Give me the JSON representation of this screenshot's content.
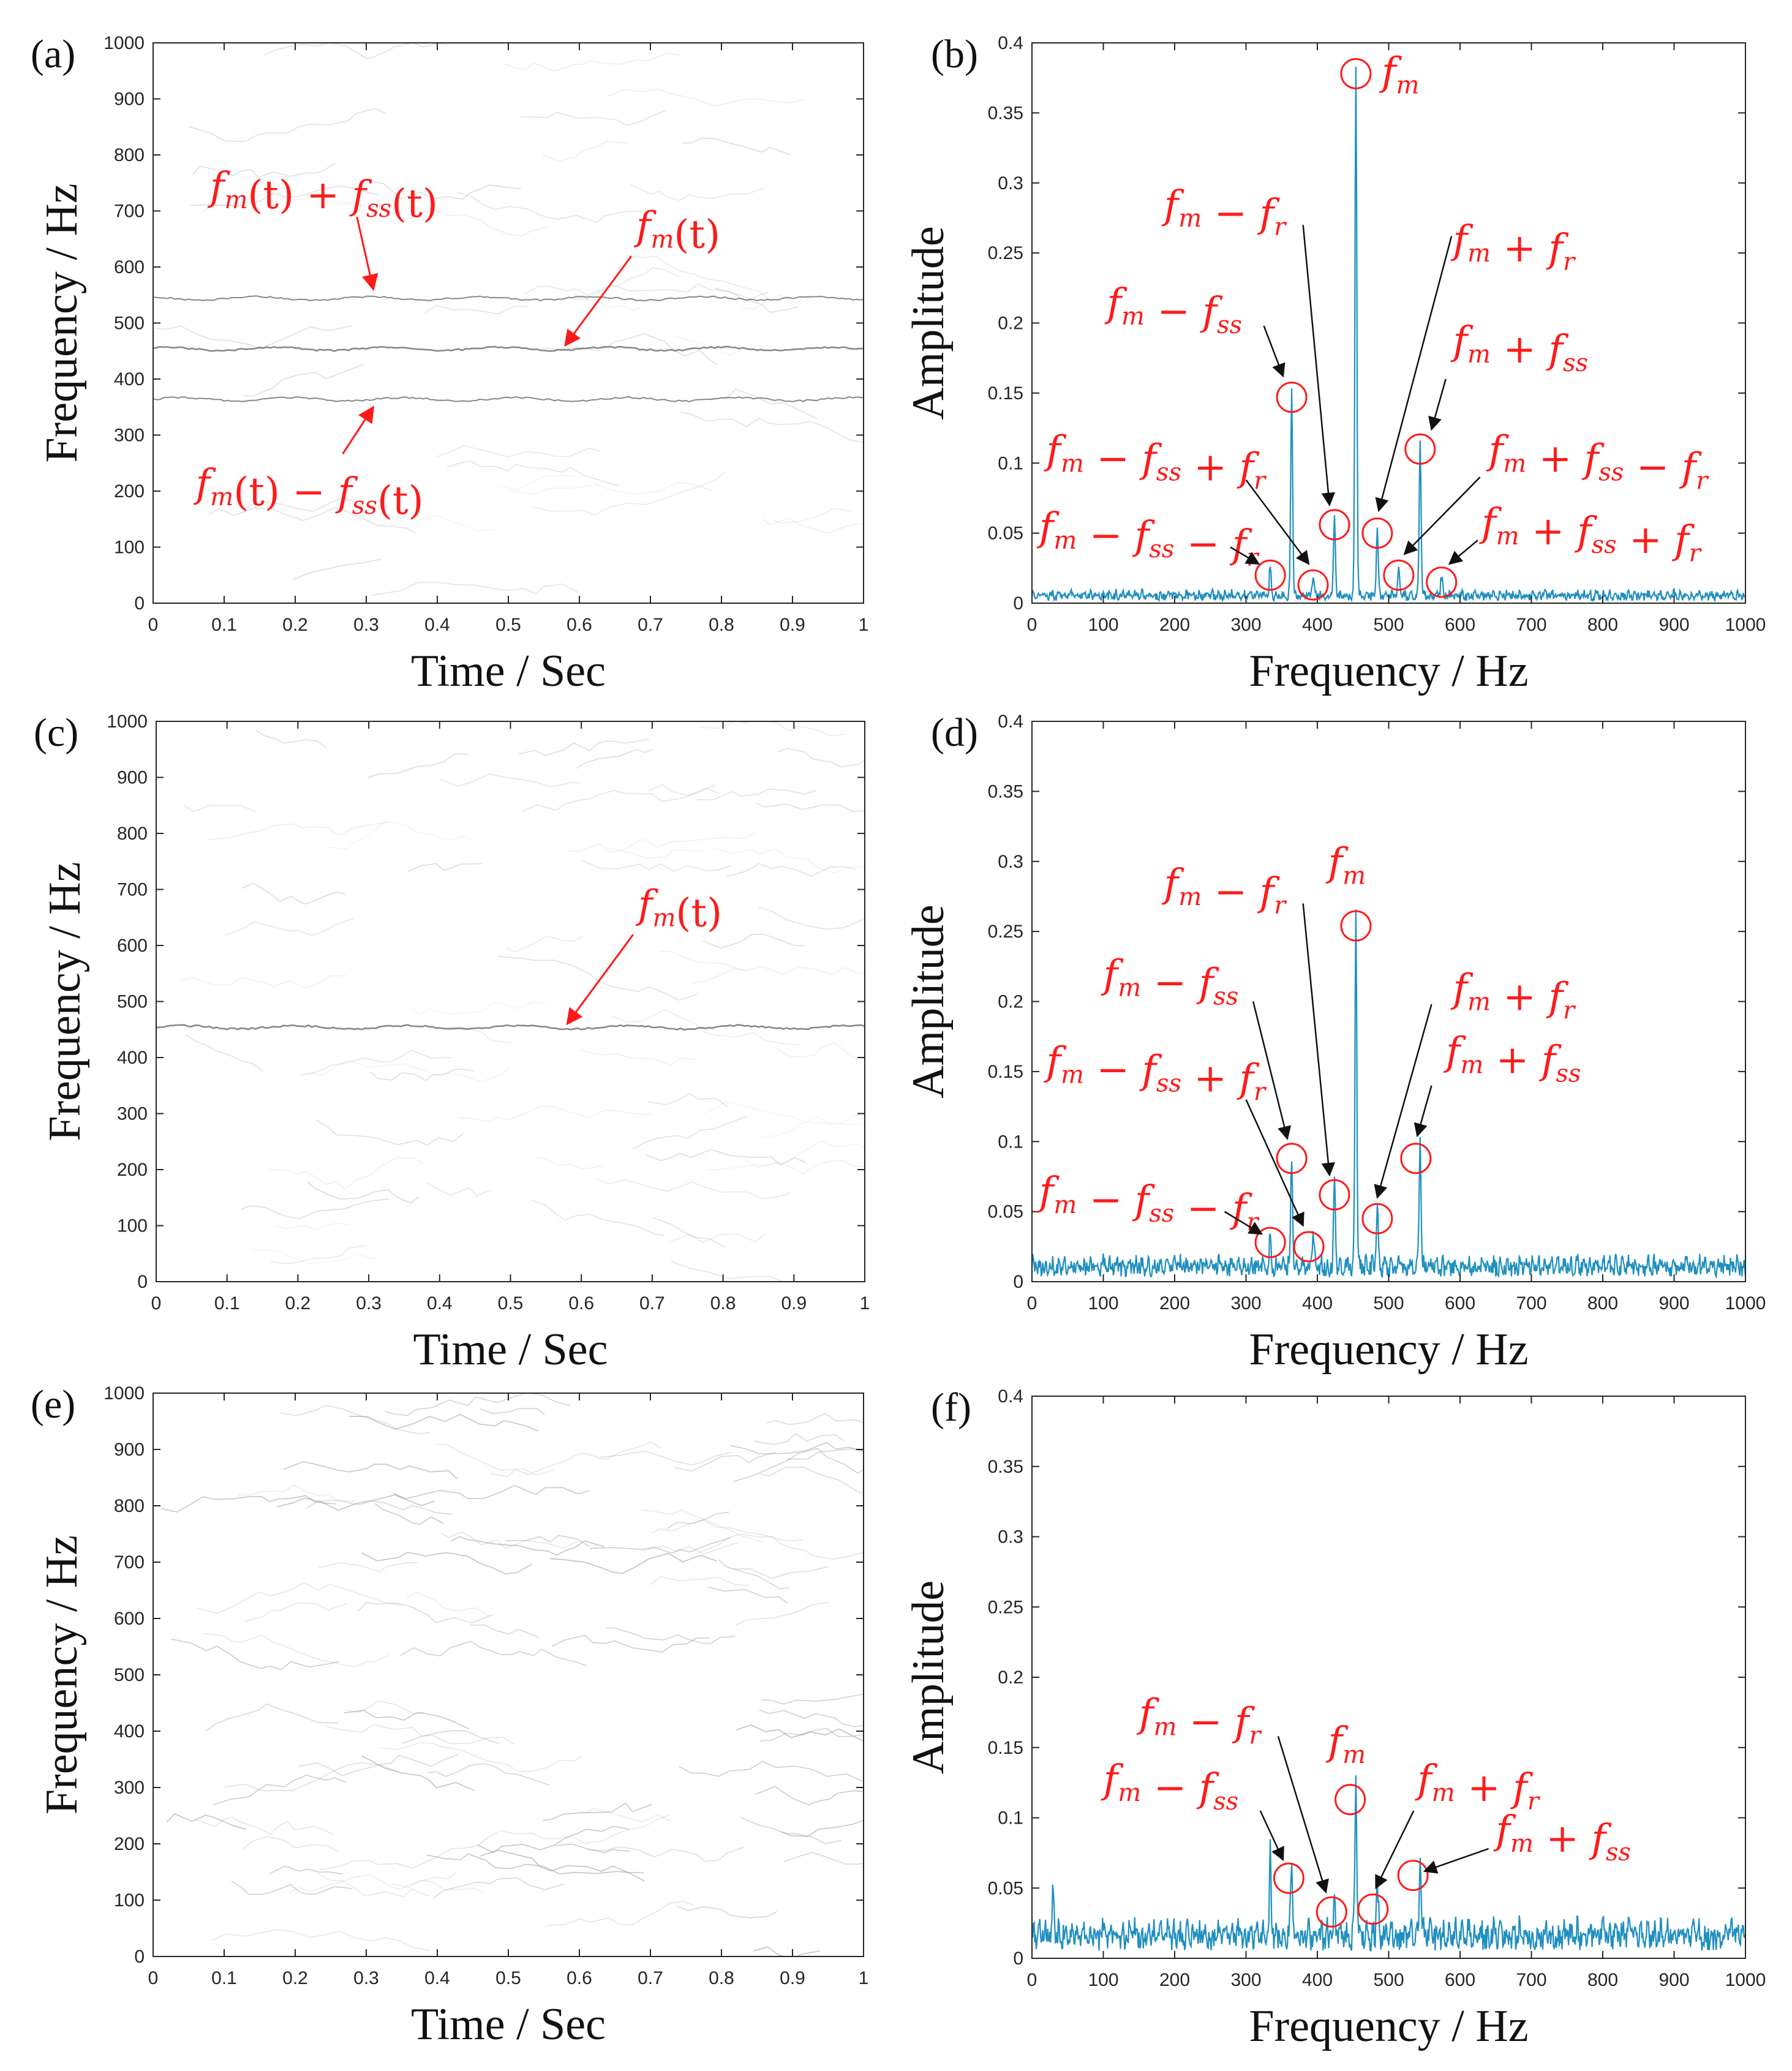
{
  "colors": {
    "spectrum": "#1f8fbf",
    "annotation": "#ff1a1a",
    "axis": "#262626",
    "tf_ridge": "#9a9a9a"
  },
  "chart_data": [
    {
      "id": "a",
      "panel_label": "(a)",
      "type": "heatmap",
      "xlabel": "Time / Sec",
      "ylabel": "Frequency / Hz",
      "xlim": [
        0,
        1
      ],
      "ylim": [
        0,
        1000
      ],
      "xticks": [
        "0",
        "0.1",
        "0.2",
        "0.3",
        "0.4",
        "0.5",
        "0.6",
        "0.7",
        "0.8",
        "0.9",
        "1"
      ],
      "yticks": [
        "0",
        "100",
        "200",
        "300",
        "400",
        "500",
        "600",
        "700",
        "800",
        "900",
        "1000"
      ],
      "ridges_hz": [
        364,
        454,
        544
      ],
      "annotations": [
        {
          "parts": [
            [
              "f",
              "m"
            ],
            [
              "(t) + "
            ],
            [
              "f",
              "ss"
            ],
            [
              "(t)"
            ]
          ],
          "text_x": 0.08,
          "text_y": 720,
          "arrow_to": [
            0.31,
            560
          ]
        },
        {
          "parts": [
            [
              "f",
              "m"
            ],
            [
              "(t)"
            ]
          ],
          "text_x": 0.68,
          "text_y": 650,
          "arrow_to": [
            0.58,
            460
          ]
        },
        {
          "parts": [
            [
              "f",
              "m"
            ],
            [
              "(t) − "
            ],
            [
              "f",
              "ss"
            ],
            [
              "(t)"
            ]
          ],
          "text_x": 0.06,
          "text_y": 190,
          "arrow_to": [
            0.31,
            350
          ]
        }
      ]
    },
    {
      "id": "b",
      "panel_label": "(b)",
      "type": "line",
      "xlabel": "Frequency / Hz",
      "ylabel": "Amplitude",
      "xlim": [
        0,
        1000
      ],
      "ylim": [
        0,
        0.4
      ],
      "xticks": [
        "0",
        "100",
        "200",
        "300",
        "400",
        "500",
        "600",
        "700",
        "800",
        "900",
        "1000"
      ],
      "yticks": [
        "0",
        "0.05",
        "0.1",
        "0.15",
        "0.2",
        "0.25",
        "0.3",
        "0.35",
        "0.4"
      ],
      "noise_level": 0.006,
      "peaks": [
        {
          "hz": 334,
          "amp": 0.02
        },
        {
          "hz": 364,
          "amp": 0.147
        },
        {
          "hz": 394,
          "amp": 0.013
        },
        {
          "hz": 424,
          "amp": 0.056
        },
        {
          "hz": 454,
          "amp": 0.378
        },
        {
          "hz": 484,
          "amp": 0.05
        },
        {
          "hz": 514,
          "amp": 0.02
        },
        {
          "hz": 544,
          "amp": 0.11
        },
        {
          "hz": 574,
          "amp": 0.015
        }
      ],
      "annotations": [
        {
          "parts": [
            [
              "f",
              "m"
            ]
          ],
          "text_x": 490,
          "text_y": 0.37,
          "circle": [
            454,
            0.378
          ]
        },
        {
          "parts": [
            [
              "f",
              "m"
            ],
            [
              " − "
            ],
            [
              "f",
              "r"
            ]
          ],
          "text_x": 185,
          "text_y": 0.275,
          "circle": [
            424,
            0.056
          ],
          "arrow_from": [
            380,
            0.27
          ],
          "arrow_to": [
            417,
            0.07
          ]
        },
        {
          "parts": [
            [
              "f",
              "m"
            ],
            [
              " + "
            ],
            [
              "f",
              "r"
            ]
          ],
          "text_x": 590,
          "text_y": 0.25,
          "circle": [
            484,
            0.05
          ],
          "arrow_from": [
            588,
            0.262
          ],
          "arrow_to": [
            486,
            0.066
          ]
        },
        {
          "parts": [
            [
              "f",
              "m"
            ],
            [
              " − "
            ],
            [
              "f",
              "ss"
            ]
          ],
          "text_x": 105,
          "text_y": 0.205,
          "circle": [
            364,
            0.147
          ],
          "arrow_from": [
            325,
            0.198
          ],
          "arrow_to": [
            352,
            0.162
          ]
        },
        {
          "parts": [
            [
              "f",
              "m"
            ],
            [
              " + "
            ],
            [
              "f",
              "ss"
            ]
          ],
          "text_x": 590,
          "text_y": 0.178,
          "circle": [
            544,
            0.11
          ],
          "arrow_from": [
            580,
            0.16
          ],
          "arrow_to": [
            560,
            0.124
          ]
        },
        {
          "parts": [
            [
              "f",
              "m"
            ],
            [
              " − "
            ],
            [
              "f",
              "ss"
            ],
            [
              " + "
            ],
            [
              "f",
              "r"
            ]
          ],
          "text_x": 20,
          "text_y": 0.1,
          "circle": [
            394,
            0.013
          ],
          "arrow_from": [
            300,
            0.088
          ],
          "arrow_to": [
            388,
            0.028
          ]
        },
        {
          "parts": [
            [
              "f",
              "m"
            ],
            [
              " + "
            ],
            [
              "f",
              "ss"
            ],
            [
              " − "
            ],
            [
              "f",
              "r"
            ]
          ],
          "text_x": 640,
          "text_y": 0.1,
          "circle": [
            514,
            0.02
          ],
          "arrow_from": [
            628,
            0.09
          ],
          "arrow_to": [
            522,
            0.035
          ]
        },
        {
          "parts": [
            [
              "f",
              "m"
            ],
            [
              " − "
            ],
            [
              "f",
              "ss"
            ],
            [
              " − "
            ],
            [
              "f",
              "r"
            ]
          ],
          "text_x": 10,
          "text_y": 0.045,
          "circle": [
            334,
            0.02
          ],
          "arrow_from": [
            278,
            0.04
          ],
          "arrow_to": [
            318,
            0.028
          ]
        },
        {
          "parts": [
            [
              "f",
              "m"
            ],
            [
              " + "
            ],
            [
              "f",
              "ss"
            ],
            [
              " + "
            ],
            [
              "f",
              "r"
            ]
          ],
          "text_x": 630,
          "text_y": 0.048,
          "circle": [
            574,
            0.015
          ],
          "arrow_from": [
            625,
            0.045
          ],
          "arrow_to": [
            585,
            0.028
          ]
        }
      ]
    },
    {
      "id": "c",
      "panel_label": "(c)",
      "type": "heatmap",
      "xlabel": "Time / Sec",
      "ylabel": "Frequency / Hz",
      "xlim": [
        0,
        1
      ],
      "ylim": [
        0,
        1000
      ],
      "xticks": [
        "0",
        "0.1",
        "0.2",
        "0.3",
        "0.4",
        "0.5",
        "0.6",
        "0.7",
        "0.8",
        "0.9",
        "1"
      ],
      "yticks": [
        "0",
        "100",
        "200",
        "300",
        "400",
        "500",
        "600",
        "700",
        "800",
        "900",
        "1000"
      ],
      "ridges_hz": [
        454
      ],
      "annotations": [
        {
          "parts": [
            [
              "f",
              "m"
            ],
            [
              "(t)"
            ]
          ],
          "text_x": 0.68,
          "text_y": 650,
          "arrow_to": [
            0.58,
            460
          ]
        }
      ]
    },
    {
      "id": "d",
      "panel_label": "(d)",
      "type": "line",
      "xlabel": "Frequency / Hz",
      "ylabel": "Amplitude",
      "xlim": [
        0,
        1000
      ],
      "ylim": [
        0,
        0.4
      ],
      "xticks": [
        "0",
        "100",
        "200",
        "300",
        "400",
        "500",
        "600",
        "700",
        "800",
        "900",
        "1000"
      ],
      "yticks": [
        "0",
        "0.05",
        "0.1",
        "0.15",
        "0.2",
        "0.25",
        "0.3",
        "0.35",
        "0.4"
      ],
      "noise_level": 0.012,
      "peaks": [
        {
          "hz": 334,
          "amp": 0.024
        },
        {
          "hz": 364,
          "amp": 0.082
        },
        {
          "hz": 394,
          "amp": 0.022
        },
        {
          "hz": 424,
          "amp": 0.062
        },
        {
          "hz": 454,
          "amp": 0.254
        },
        {
          "hz": 484,
          "amp": 0.045
        },
        {
          "hz": 544,
          "amp": 0.09
        }
      ],
      "annotations": [
        {
          "parts": [
            [
              "f",
              "m"
            ]
          ],
          "text_x": 415,
          "text_y": 0.29,
          "circle": [
            454,
            0.254
          ]
        },
        {
          "parts": [
            [
              "f",
              "m"
            ],
            [
              " − "
            ],
            [
              "f",
              "r"
            ]
          ],
          "text_x": 185,
          "text_y": 0.275,
          "circle": [
            424,
            0.062
          ],
          "arrow_from": [
            380,
            0.27
          ],
          "arrow_to": [
            417,
            0.076
          ]
        },
        {
          "parts": [
            [
              "f",
              "m"
            ],
            [
              " − "
            ],
            [
              "f",
              "ss"
            ]
          ],
          "text_x": 100,
          "text_y": 0.21,
          "circle": [
            364,
            0.088
          ],
          "arrow_from": [
            310,
            0.2
          ],
          "arrow_to": [
            358,
            0.102
          ]
        },
        {
          "parts": [
            [
              "f",
              "m"
            ],
            [
              " + "
            ],
            [
              "f",
              "r"
            ]
          ],
          "text_x": 590,
          "text_y": 0.2,
          "circle": [
            484,
            0.045
          ],
          "arrow_from": [
            560,
            0.198
          ],
          "arrow_to": [
            484,
            0.06
          ]
        },
        {
          "parts": [
            [
              "f",
              "m"
            ],
            [
              " + "
            ],
            [
              "f",
              "ss"
            ]
          ],
          "text_x": 580,
          "text_y": 0.155,
          "circle": [
            538,
            0.088
          ],
          "arrow_from": [
            560,
            0.14
          ],
          "arrow_to": [
            540,
            0.104
          ]
        },
        {
          "parts": [
            [
              "f",
              "m"
            ],
            [
              " − "
            ],
            [
              "f",
              "ss"
            ],
            [
              " + "
            ],
            [
              "f",
              "r"
            ]
          ],
          "text_x": 20,
          "text_y": 0.148,
          "circle": [
            388,
            0.025
          ],
          "arrow_from": [
            300,
            0.13
          ],
          "arrow_to": [
            380,
            0.04
          ]
        },
        {
          "parts": [
            [
              "f",
              "m"
            ],
            [
              " − "
            ],
            [
              "f",
              "ss"
            ],
            [
              " − "
            ],
            [
              "f",
              "r"
            ]
          ],
          "text_x": 10,
          "text_y": 0.055,
          "circle": [
            334,
            0.028
          ],
          "arrow_from": [
            270,
            0.05
          ],
          "arrow_to": [
            322,
            0.034
          ]
        }
      ]
    },
    {
      "id": "e",
      "panel_label": "(e)",
      "type": "heatmap",
      "xlabel": "Time / Sec",
      "ylabel": "Frequency / Hz",
      "xlim": [
        0,
        1
      ],
      "ylim": [
        0,
        1000
      ],
      "xticks": [
        "0",
        "0.1",
        "0.2",
        "0.3",
        "0.4",
        "0.5",
        "0.6",
        "0.7",
        "0.8",
        "0.9",
        "1"
      ],
      "yticks": [
        "0",
        "100",
        "200",
        "300",
        "400",
        "500",
        "600",
        "700",
        "800",
        "900",
        "1000"
      ],
      "ridges_hz": [],
      "annotations": []
    },
    {
      "id": "f",
      "panel_label": "(f)",
      "type": "line",
      "xlabel": "Frequency / Hz",
      "ylabel": "Amplitude",
      "xlim": [
        0,
        1000
      ],
      "ylim": [
        0,
        0.4
      ],
      "xticks": [
        "0",
        "100",
        "200",
        "300",
        "400",
        "500",
        "600",
        "700",
        "800",
        "900",
        "1000"
      ],
      "yticks": [
        "0",
        "0.05",
        "0.1",
        "0.15",
        "0.2",
        "0.25",
        "0.3",
        "0.35",
        "0.4"
      ],
      "noise_level": 0.018,
      "peaks": [
        {
          "hz": 334,
          "amp": 0.056
        },
        {
          "hz": 364,
          "amp": 0.058
        },
        {
          "hz": 424,
          "amp": 0.03
        },
        {
          "hz": 454,
          "amp": 0.11
        },
        {
          "hz": 484,
          "amp": 0.034
        },
        {
          "hz": 544,
          "amp": 0.05
        },
        {
          "hz": 30,
          "amp": 0.04
        }
      ],
      "annotations": [
        {
          "parts": [
            [
              "f",
              "m"
            ]
          ],
          "text_x": 415,
          "text_y": 0.145,
          "circle": [
            446,
            0.113
          ]
        },
        {
          "parts": [
            [
              "f",
              "m"
            ],
            [
              " − "
            ],
            [
              "f",
              "r"
            ]
          ],
          "text_x": 150,
          "text_y": 0.165,
          "circle": [
            420,
            0.033
          ],
          "arrow_from": [
            345,
            0.158
          ],
          "arrow_to": [
            412,
            0.047
          ]
        },
        {
          "parts": [
            [
              "f",
              "m"
            ],
            [
              " − "
            ],
            [
              "f",
              "ss"
            ]
          ],
          "text_x": 100,
          "text_y": 0.118,
          "circle": [
            360,
            0.057
          ],
          "arrow_from": [
            320,
            0.105
          ],
          "arrow_to": [
            352,
            0.07
          ]
        },
        {
          "parts": [
            [
              "f",
              "m"
            ],
            [
              " + "
            ],
            [
              "f",
              "r"
            ]
          ],
          "text_x": 540,
          "text_y": 0.118,
          "circle": [
            478,
            0.035
          ],
          "arrow_from": [
            535,
            0.105
          ],
          "arrow_to": [
            482,
            0.05
          ]
        },
        {
          "parts": [
            [
              "f",
              "m"
            ],
            [
              " + "
            ],
            [
              "f",
              "ss"
            ]
          ],
          "text_x": 650,
          "text_y": 0.082,
          "circle": [
            534,
            0.059
          ],
          "arrow_from": [
            640,
            0.078
          ],
          "arrow_to": [
            550,
            0.062
          ]
        }
      ]
    }
  ]
}
